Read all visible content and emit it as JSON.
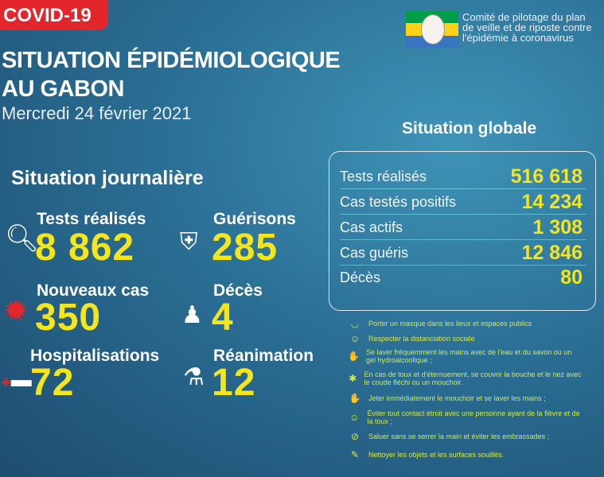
{
  "tag": "COVID-19",
  "title_line1": "SITUATION ÉPIDÉMIOLOGIQUE",
  "title_line2": "AU GABON",
  "date": "Mercredi 24 février 2021",
  "committee": [
    "Comité de pilotage du plan",
    "de veille et de riposte contre",
    "l'épidémie à coronavirus"
  ],
  "flag_colors": [
    "#009e49",
    "#fcd116",
    "#3a75c4"
  ],
  "daily": {
    "heading": "Situation journalière",
    "items": [
      {
        "label": "Tests réalisés",
        "value": "8 862",
        "icon": "magnifier-icon"
      },
      {
        "label": "Guérisons",
        "value": "285",
        "icon": "shield-cross-icon"
      },
      {
        "label": "Nouveaux cas",
        "value": "350",
        "icon": "virus-icon"
      },
      {
        "label": "Décès",
        "value": "4",
        "icon": "person-icon"
      },
      {
        "label": "Hospitalisations",
        "value": "72",
        "icon": "hospital-bed-icon"
      },
      {
        "label": "Réanimation",
        "value": "12",
        "icon": "oxygen-bottle-icon"
      }
    ]
  },
  "global": {
    "heading": "Situation globale",
    "rows": [
      {
        "label": "Tests réalisés",
        "value": "516 618"
      },
      {
        "label": "Cas testés positifs",
        "value": "14 234"
      },
      {
        "label": "Cas actifs",
        "value": "1 308"
      },
      {
        "label": "Cas guéris",
        "value": "12 846"
      },
      {
        "label": "Décès",
        "value": "80"
      }
    ]
  },
  "tips": [
    {
      "text": "Porter un masque dans les lieux et espaces publics",
      "icon": "mask-icon"
    },
    {
      "text": "Respecter la distanciation sociale",
      "icon": "distance-icon"
    },
    {
      "text": "Se laver fréquemment les mains avec de l'eau et du savon ou un gel hydroalcoolique ;",
      "icon": "handwash-icon"
    },
    {
      "text": "En cas de toux et d'éternuement, se couvrir la bouche et le nez avec le coude fléchi ou un mouchoir.",
      "icon": "sneeze-icon"
    },
    {
      "text": "Jeter immédiatement le mouchoir et se laver les mains ;",
      "icon": "handwash-icon"
    },
    {
      "text": "Éviter tout contact étroit avec une personne ayant de la fièvre et de la toux ;",
      "icon": "distance-icon"
    },
    {
      "text": "Saluer sans se serrer la main et éviter les embrassades ;",
      "icon": "no-handshake-icon"
    },
    {
      "text": "Nettoyer les objets et les surfaces souillés.",
      "icon": "cleaning-icon"
    }
  ]
}
